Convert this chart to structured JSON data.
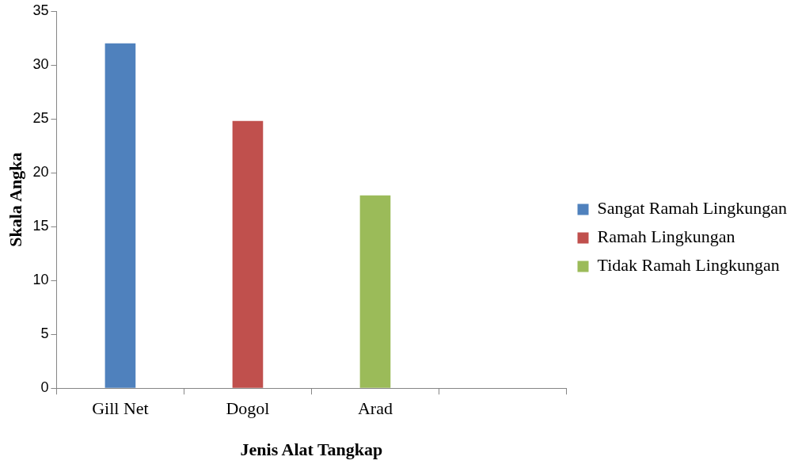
{
  "chart_data": {
    "type": "bar",
    "xlabel": "Jenis Alat Tangkap",
    "ylabel": "Skala Angka",
    "categories": [
      "Gill Net",
      "Dogol",
      "Arad",
      null
    ],
    "series": [
      {
        "name": "Sangat Ramah Lingkungan",
        "color": "#4f81bd",
        "values": [
          32,
          null,
          null,
          null
        ]
      },
      {
        "name": "Ramah Lingkungan",
        "color": "#c0504d",
        "values": [
          null,
          24.8,
          null,
          null
        ]
      },
      {
        "name": "Tidak Ramah Lingkungan",
        "color": "#9bbb59",
        "values": [
          null,
          null,
          17.9,
          null
        ]
      }
    ],
    "ylim": [
      0,
      35
    ],
    "yticks": [
      0,
      5,
      10,
      15,
      20,
      25,
      30,
      35
    ],
    "grid": false,
    "legend": "right"
  }
}
